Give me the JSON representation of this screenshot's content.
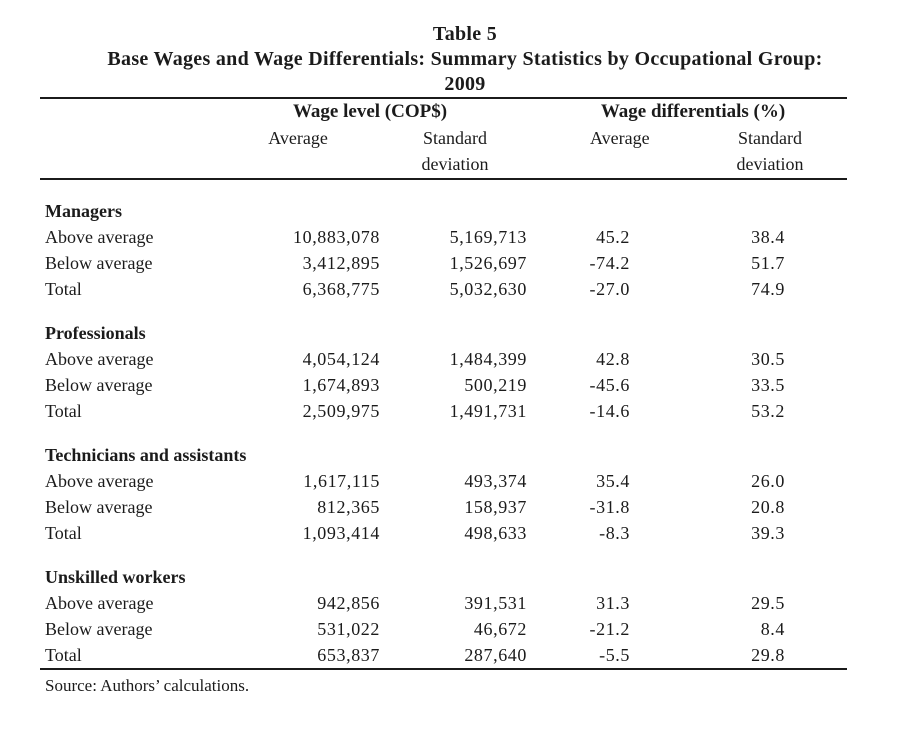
{
  "title": {
    "table_label": "Table 5",
    "heading": "Base Wages and Wage Differentials: Summary Statistics by Occupational Group:",
    "year": "2009"
  },
  "columns": {
    "group1": "Wage level (COP$)",
    "group2": "Wage differentials (%)",
    "sub": [
      "Average",
      "Standard deviation",
      "Average",
      "Standard deviation"
    ]
  },
  "sections": [
    {
      "name": "Managers",
      "rows": [
        {
          "label": "Above average",
          "values": [
            "10,883,078",
            "5,169,713",
            "45.2",
            "38.4"
          ]
        },
        {
          "label": "Below average",
          "values": [
            "3,412,895",
            "1,526,697",
            "-74.2",
            "51.7"
          ]
        },
        {
          "label": "Total",
          "values": [
            "6,368,775",
            "5,032,630",
            "-27.0",
            "74.9"
          ]
        }
      ]
    },
    {
      "name": "Professionals",
      "rows": [
        {
          "label": "Above average",
          "values": [
            "4,054,124",
            "1,484,399",
            "42.8",
            "30.5"
          ]
        },
        {
          "label": "Below average",
          "values": [
            "1,674,893",
            "500,219",
            "-45.6",
            "33.5"
          ]
        },
        {
          "label": "Total",
          "values": [
            "2,509,975",
            "1,491,731",
            "-14.6",
            "53.2"
          ]
        }
      ]
    },
    {
      "name": "Technicians and assistants",
      "rows": [
        {
          "label": "Above average",
          "values": [
            "1,617,115",
            "493,374",
            "35.4",
            "26.0"
          ]
        },
        {
          "label": "Below average",
          "values": [
            "812,365",
            "158,937",
            "-31.8",
            "20.8"
          ]
        },
        {
          "label": "Total",
          "values": [
            "1,093,414",
            "498,633",
            "-8.3",
            "39.3"
          ]
        }
      ]
    },
    {
      "name": "Unskilled workers",
      "rows": [
        {
          "label": "Above average",
          "values": [
            "942,856",
            "391,531",
            "31.3",
            "29.5"
          ]
        },
        {
          "label": "Below average",
          "values": [
            "531,022",
            "46,672",
            "-21.2",
            "8.4"
          ]
        },
        {
          "label": "Total",
          "values": [
            "653,837",
            "287,640",
            "-5.5",
            "29.8"
          ]
        }
      ]
    }
  ],
  "source": "Source: Authors’ calculations.",
  "colors": {
    "text": "#1b1b1b",
    "rule": "#1b1b1b",
    "background": "#ffffff"
  }
}
